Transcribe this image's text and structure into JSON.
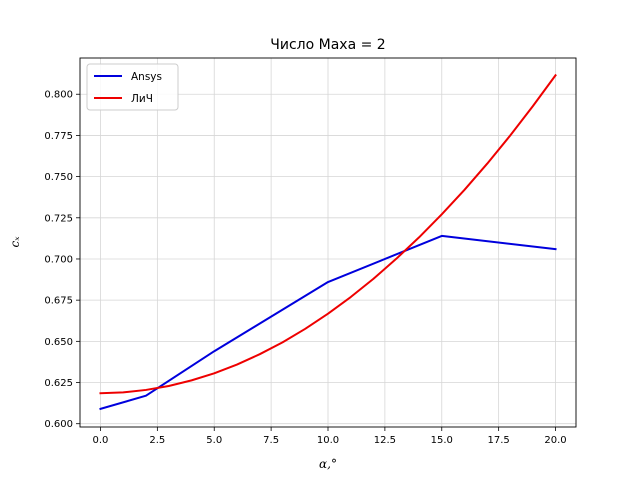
{
  "chart_data": {
    "type": "line",
    "title": "Число Маха = 2",
    "xlabel": "α,°",
    "ylabel": "cₓ",
    "xlim": [
      -0.9,
      20.9
    ],
    "ylim": [
      0.598,
      0.822
    ],
    "xticks": [
      0.0,
      2.5,
      5.0,
      7.5,
      10.0,
      12.5,
      15.0,
      17.5,
      20.0
    ],
    "xtick_labels": [
      "0.0",
      "2.5",
      "5.0",
      "7.5",
      "10.0",
      "12.5",
      "15.0",
      "17.5",
      "20.0"
    ],
    "yticks": [
      0.6,
      0.625,
      0.65,
      0.675,
      0.7,
      0.725,
      0.75,
      0.775,
      0.8
    ],
    "ytick_labels": [
      "0.600",
      "0.625",
      "0.650",
      "0.675",
      "0.700",
      "0.725",
      "0.750",
      "0.775",
      "0.800"
    ],
    "grid": true,
    "legend": "top-left",
    "series": [
      {
        "name": "Ansys",
        "color": "#0000dd",
        "x": [
          0,
          2,
          5,
          10,
          15,
          20
        ],
        "y": [
          0.609,
          0.617,
          0.644,
          0.686,
          0.714,
          0.706
        ]
      },
      {
        "name": "ЛиЧ",
        "color": "#ee0000",
        "x": [
          0,
          1,
          2,
          3,
          4,
          5,
          6,
          7,
          8,
          9,
          10,
          11,
          12,
          13,
          14,
          15,
          16,
          17,
          18,
          19,
          20
        ],
        "y": [
          0.6185,
          0.619,
          0.6205,
          0.6229,
          0.6263,
          0.6306,
          0.6359,
          0.6422,
          0.6494,
          0.6576,
          0.6668,
          0.6769,
          0.688,
          0.7001,
          0.7131,
          0.7271,
          0.742,
          0.7579,
          0.7748,
          0.7927,
          0.8115
        ]
      }
    ]
  }
}
